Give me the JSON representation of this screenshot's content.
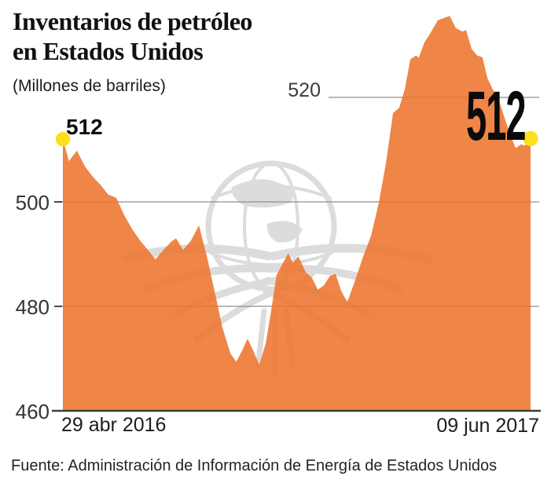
{
  "title": {
    "line1": "Inventarios de petróleo",
    "line2": "en Estados Unidos"
  },
  "subtitle": "(Millones de barriles)",
  "source": "Fuente: Administración de Información de Energía de Estados Unidos",
  "annotations": {
    "start_value_label": "512",
    "end_value_label": "512"
  },
  "x_axis": {
    "start_label": "29 abr 2016",
    "end_label": "09 jun 2017"
  },
  "y_axis": {
    "labels": [
      "520",
      "500",
      "480",
      "460"
    ]
  },
  "colors": {
    "area_orange": "#ED742E",
    "area_rendered_over_white": "#F08546",
    "dot_yellow": "#FFDF1B",
    "gridline": "#8F8F8F",
    "tick_stub": "#4A4A4A",
    "axis_line": "#3D3D3D",
    "watermark_gray": "#DCDCDC",
    "text_black": "#111111",
    "background": "#FFFFFF"
  },
  "chart_data": {
    "type": "area",
    "title": "Inventarios de petróleo en Estados Unidos",
    "units": "Millones de barriles",
    "x_range_labels": [
      "29 abr 2016",
      "09 jun 2017"
    ],
    "ylim": [
      460,
      537
    ],
    "yticks": [
      460,
      480,
      500,
      520
    ],
    "grid": true,
    "first_value": 512,
    "last_value": 512,
    "peak_value": 535.6,
    "min_value": 468.8,
    "points_format": "[t (0=29 abr 2016, 1=09 jun 2017), value in millions of barrels]",
    "points": [
      [
        0.0,
        512.0
      ],
      [
        0.013,
        507.8
      ],
      [
        0.03,
        509.8
      ],
      [
        0.047,
        506.8
      ],
      [
        0.064,
        504.8
      ],
      [
        0.081,
        503.2
      ],
      [
        0.097,
        501.4
      ],
      [
        0.114,
        500.8
      ],
      [
        0.131,
        497.5
      ],
      [
        0.148,
        494.8
      ],
      [
        0.165,
        492.6
      ],
      [
        0.182,
        490.8
      ],
      [
        0.198,
        489.0
      ],
      [
        0.215,
        490.8
      ],
      [
        0.232,
        492.4
      ],
      [
        0.242,
        493.0
      ],
      [
        0.257,
        490.8
      ],
      [
        0.274,
        492.6
      ],
      [
        0.291,
        495.5
      ],
      [
        0.308,
        489.5
      ],
      [
        0.324,
        483.0
      ],
      [
        0.341,
        476.0
      ],
      [
        0.358,
        471.0
      ],
      [
        0.371,
        469.4
      ],
      [
        0.383,
        471.5
      ],
      [
        0.395,
        473.8
      ],
      [
        0.407,
        471.5
      ],
      [
        0.42,
        468.8
      ],
      [
        0.434,
        473.0
      ],
      [
        0.445,
        479.0
      ],
      [
        0.457,
        486.0
      ],
      [
        0.469,
        488.0
      ],
      [
        0.482,
        490.2
      ],
      [
        0.492,
        488.3
      ],
      [
        0.503,
        489.6
      ],
      [
        0.519,
        486.6
      ],
      [
        0.533,
        485.4
      ],
      [
        0.545,
        483.2
      ],
      [
        0.558,
        484.0
      ],
      [
        0.571,
        485.8
      ],
      [
        0.583,
        486.2
      ],
      [
        0.595,
        483.0
      ],
      [
        0.608,
        480.8
      ],
      [
        0.625,
        485.0
      ],
      [
        0.642,
        489.5
      ],
      [
        0.659,
        493.5
      ],
      [
        0.676,
        500.0
      ],
      [
        0.691,
        507.5
      ],
      [
        0.706,
        517.0
      ],
      [
        0.719,
        518.0
      ],
      [
        0.731,
        521.5
      ],
      [
        0.743,
        527.3
      ],
      [
        0.755,
        528.0
      ],
      [
        0.761,
        527.6
      ],
      [
        0.773,
        530.5
      ],
      [
        0.787,
        532.5
      ],
      [
        0.802,
        534.8
      ],
      [
        0.815,
        535.2
      ],
      [
        0.827,
        535.6
      ],
      [
        0.84,
        533.3
      ],
      [
        0.854,
        532.6
      ],
      [
        0.862,
        532.9
      ],
      [
        0.874,
        529.3
      ],
      [
        0.886,
        528.0
      ],
      [
        0.897,
        527.7
      ],
      [
        0.908,
        523.6
      ],
      [
        0.919,
        521.6
      ],
      [
        0.931,
        519.8
      ],
      [
        0.943,
        516.5
      ],
      [
        0.954,
        513.5
      ],
      [
        0.968,
        510.3
      ],
      [
        0.98,
        511.0
      ],
      [
        0.988,
        510.8
      ],
      [
        1.0,
        511.8
      ]
    ]
  }
}
